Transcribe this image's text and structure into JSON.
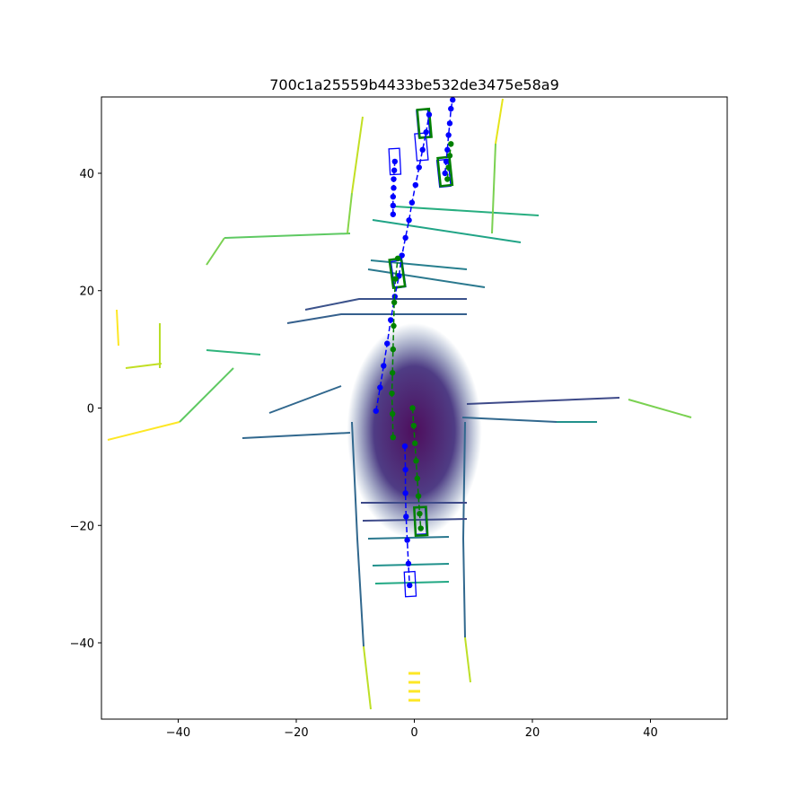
{
  "chart_data": {
    "type": "scatter",
    "title": "700c1a25559b4433be532de3475e58a9",
    "xlabel": "",
    "ylabel": "",
    "xlim": [
      -53,
      53
    ],
    "ylim": [
      -53,
      53
    ],
    "xticks": [
      -40,
      -20,
      0,
      20,
      40
    ],
    "yticks": [
      -40,
      -20,
      0,
      20,
      40
    ],
    "grid": false,
    "legend": "none",
    "colors": {
      "blue": "#0000ff",
      "green": "#008000",
      "frame": "#000000"
    },
    "colormap": "viridis",
    "series": [
      {
        "style": "dashed-line-with-dots",
        "color": "blue",
        "points": [
          [
            -6.5,
            -0.5
          ],
          [
            -5.8,
            3.5
          ],
          [
            -5.2,
            7.2
          ],
          [
            -4.6,
            11
          ],
          [
            -4,
            15
          ],
          [
            -3.3,
            19
          ],
          [
            -2.6,
            22.5
          ],
          [
            -2.1,
            26
          ],
          [
            -1.5,
            29
          ],
          [
            -0.9,
            32
          ],
          [
            -0.4,
            35
          ],
          [
            0.2,
            38
          ],
          [
            0.8,
            41
          ],
          [
            1.4,
            44
          ],
          [
            2,
            47
          ],
          [
            2.5,
            50
          ]
        ]
      },
      {
        "style": "dashed-line-with-dots",
        "color": "blue",
        "points": [
          [
            -3.6,
            33
          ],
          [
            -3.6,
            34.5
          ],
          [
            -3.6,
            36
          ],
          [
            -3.5,
            37.5
          ],
          [
            -3.5,
            39
          ],
          [
            -3.4,
            40.5
          ],
          [
            -3.3,
            42
          ]
        ]
      },
      {
        "style": "dashed-line-with-dots",
        "color": "blue",
        "points": [
          [
            -1.6,
            -6.5
          ],
          [
            -1.5,
            -10.5
          ],
          [
            -1.5,
            -14.5
          ],
          [
            -1.4,
            -18.5
          ],
          [
            -1.2,
            -22.5
          ],
          [
            -1,
            -26.5
          ],
          [
            -0.8,
            -30.2
          ]
        ]
      },
      {
        "style": "dashed-line-with-dots",
        "color": "blue",
        "points": [
          [
            5.2,
            40
          ],
          [
            5.4,
            42
          ],
          [
            5.6,
            44
          ],
          [
            5.8,
            46.5
          ],
          [
            6,
            48.5
          ],
          [
            6.2,
            51
          ],
          [
            6.5,
            52.5
          ]
        ]
      },
      {
        "style": "dashed-line-with-dots",
        "color": "green",
        "points": [
          [
            -3.6,
            -5
          ],
          [
            -3.7,
            -1
          ],
          [
            -3.8,
            2.5
          ],
          [
            -3.7,
            6
          ],
          [
            -3.6,
            10
          ],
          [
            -3.5,
            14
          ],
          [
            -3.4,
            18
          ],
          [
            -3.2,
            22
          ],
          [
            -2.8,
            25.5
          ]
        ]
      },
      {
        "style": "dashed-line-with-dots",
        "color": "green",
        "points": [
          [
            -0.3,
            0
          ],
          [
            -0.1,
            -3
          ],
          [
            0.1,
            -6
          ],
          [
            0.3,
            -9
          ],
          [
            0.5,
            -12
          ],
          [
            0.7,
            -15
          ],
          [
            0.9,
            -18
          ],
          [
            1.1,
            -20.5
          ]
        ]
      },
      {
        "style": "dashed-line-with-dots",
        "color": "green",
        "points": [
          [
            5.6,
            39
          ],
          [
            5.8,
            41
          ],
          [
            6,
            43
          ],
          [
            6.2,
            45
          ]
        ]
      }
    ],
    "boxes": [
      {
        "color": "blue",
        "cx": -3.3,
        "cy": 42,
        "w": 1.8,
        "h": 4.4,
        "angle": -3,
        "thick": false
      },
      {
        "color": "blue",
        "cx": 1.2,
        "cy": 44.5,
        "w": 1.9,
        "h": 4.6,
        "angle": -5,
        "thick": false
      },
      {
        "color": "blue",
        "cx": 1.5,
        "cy": 48.5,
        "w": 1.9,
        "h": 4.6,
        "angle": -5,
        "thick": false
      },
      {
        "color": "blue",
        "cx": 5,
        "cy": 40,
        "w": 1.9,
        "h": 4.6,
        "angle": -6,
        "thick": false
      },
      {
        "color": "blue",
        "cx": -2.7,
        "cy": 22.8,
        "w": 1.9,
        "h": 4.6,
        "angle": -8,
        "thick": false
      },
      {
        "color": "blue",
        "cx": 1,
        "cy": -19.2,
        "w": 1.9,
        "h": 4.6,
        "angle": -3,
        "thick": false
      },
      {
        "color": "blue",
        "cx": -0.7,
        "cy": -30,
        "w": 1.8,
        "h": 4.2,
        "angle": -3,
        "thick": false
      },
      {
        "color": "green",
        "cx": 1.7,
        "cy": 48.5,
        "w": 2,
        "h": 4.8,
        "angle": -5,
        "thick": true
      },
      {
        "color": "green",
        "cx": 5.2,
        "cy": 40.3,
        "w": 2,
        "h": 4.8,
        "angle": -6,
        "thick": true
      },
      {
        "color": "green",
        "cx": -2.9,
        "cy": 23,
        "w": 2,
        "h": 4.8,
        "angle": -8,
        "thick": true
      },
      {
        "color": "green",
        "cx": 1.1,
        "cy": -19.3,
        "w": 2,
        "h": 4.8,
        "angle": -3,
        "thick": true
      }
    ]
  }
}
